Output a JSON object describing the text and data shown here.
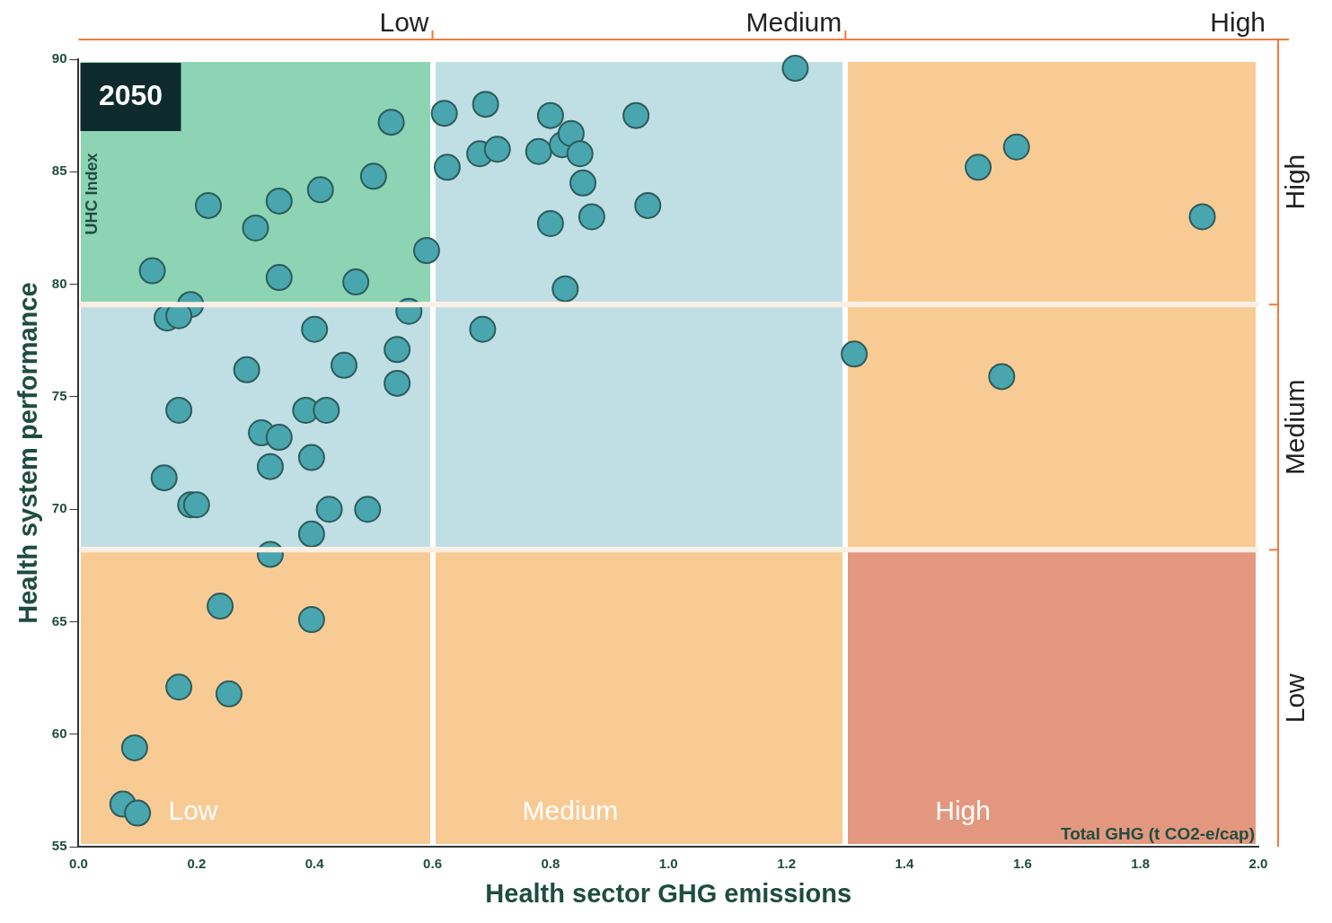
{
  "chart_data": {
    "type": "scatter",
    "xlabel": "Health sector GHG emissions",
    "ylabel": "Health system performance",
    "annotations": [
      "2050",
      "UHC Index",
      "Total GHG (t CO2-e/cap)",
      "High",
      "Medium",
      "Low"
    ],
    "ref_lines": [
      {
        "axis": "y",
        "value": 68.2,
        "color": "#fbeee2"
      },
      {
        "axis": "y",
        "value": 79.1,
        "color": "#fbeee2"
      }
    ],
    "xlim": [
      0,
      2
    ],
    "xticks": [
      {
        "value": 0,
        "label": "0.0"
      },
      0.2,
      0.4,
      0.6,
      0.8,
      {
        "value": 1,
        "label": "1.0"
      },
      1.2,
      1.4,
      1.6,
      1.8,
      {
        "value": 2,
        "label": "2.0"
      }
    ],
    "ylim": [
      55,
      90
    ],
    "yticks": [
      55,
      60,
      65,
      70,
      75,
      80,
      85,
      90
    ],
    "bands": [
      {
        "axis": "x",
        "from": 0,
        "to": 0.6,
        "label": "Low"
      },
      {
        "axis": "x",
        "from": 0.6,
        "to": 1.3,
        "label": "Medium"
      },
      {
        "axis": "x",
        "from": 1.3,
        "to": 2,
        "label": "High"
      }
    ],
    "marker": "circle",
    "legend": false,
    "x": [
      0.53,
      0.5,
      0.41,
      0.34,
      0.22,
      0.3,
      0.125,
      0.34,
      0.47,
      0.59,
      0.56,
      0.19,
      0.15,
      0.17,
      0.4,
      0.285,
      0.45,
      0.54,
      0.54,
      0.17,
      0.385,
      0.42,
      0.31,
      0.34,
      0.395,
      0.325,
      0.145,
      0.19,
      0.2,
      0.425,
      0.49,
      0.395,
      0.325,
      0.24,
      0.395,
      0.17,
      0.255,
      0.095,
      0.075,
      0.1,
      0.62,
      0.69,
      0.625,
      0.68,
      0.71,
      0.78,
      0.8,
      0.82,
      0.835,
      0.85,
      0.855,
      0.945,
      0.965,
      0.8,
      0.87,
      0.825,
      0.685,
      1.215,
      1.315,
      1.565,
      1.525,
      1.59,
      1.905
    ],
    "series": [
      {
        "color": "#4aa6ae",
        "values": [
          87.2,
          84.8,
          84.2,
          83.7,
          83.5,
          82.5,
          80.6,
          80.3,
          80.1,
          81.5,
          78.8,
          79.1,
          78.5,
          78.6,
          78.0,
          76.2,
          76.4,
          77.1,
          75.6,
          74.4,
          74.4,
          74.4,
          73.4,
          73.2,
          72.3,
          71.9,
          71.4,
          70.2,
          70.2,
          70.0,
          70.0,
          68.9,
          68.0,
          65.7,
          65.1,
          62.1,
          61.8,
          59.4,
          56.9,
          56.5,
          87.6,
          88.0,
          85.2,
          85.8,
          86.0,
          85.9,
          87.5,
          86.2,
          86.7,
          85.8,
          84.5,
          87.5,
          83.5,
          82.7,
          83.0,
          79.8,
          78.0,
          89.6,
          76.9,
          75.9,
          85.2,
          86.1,
          83.0
        ]
      }
    ]
  }
}
